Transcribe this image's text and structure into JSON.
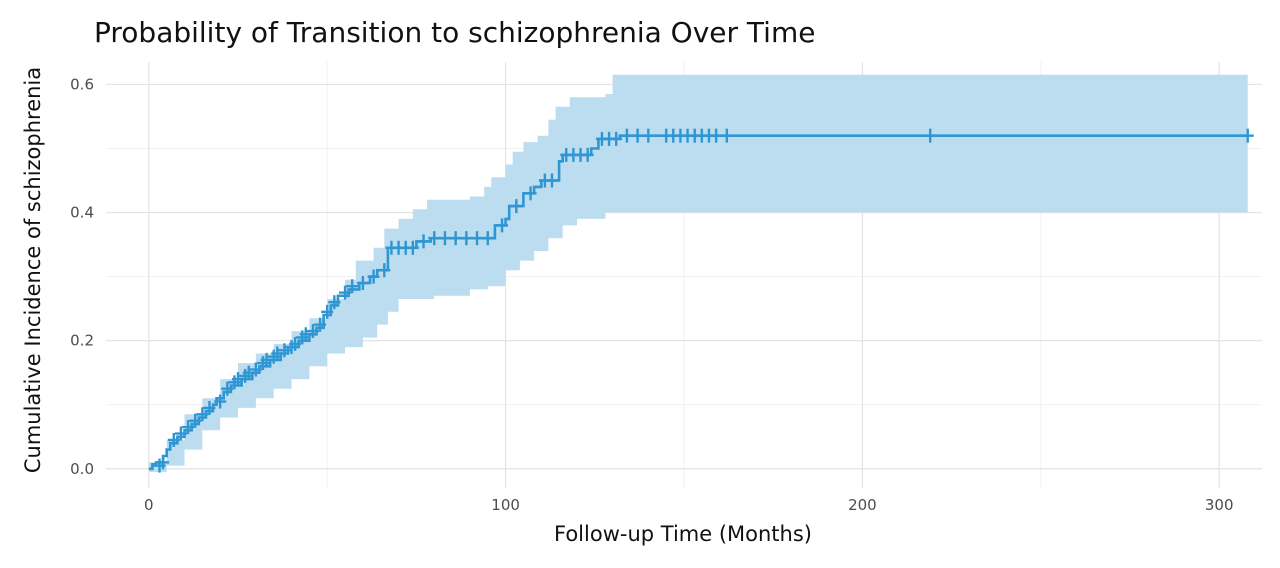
{
  "chart_data": {
    "type": "line",
    "title": "Probability of Transition to schizophrenia Over Time",
    "xlabel": "Follow-up Time (Months)",
    "ylabel": "Cumulative Incidence of schizophrenia",
    "xlim": [
      -12,
      312
    ],
    "ylim": [
      -0.03,
      0.635
    ],
    "x_ticks": [
      0,
      100,
      200,
      300
    ],
    "y_ticks": [
      0.0,
      0.2,
      0.4,
      0.6
    ],
    "x_tick_labels": [
      "0",
      "100",
      "200",
      "300"
    ],
    "y_tick_labels": [
      "0.0",
      "0.2",
      "0.4",
      "0.6"
    ],
    "grid": true,
    "legend": "none",
    "colors": {
      "line": "#2e96d2",
      "band": "#bcdcf0"
    },
    "series": [
      {
        "style": "step",
        "points": [
          [
            0,
            0.0
          ],
          [
            1,
            0.007
          ],
          [
            2,
            0.01
          ],
          [
            4,
            0.02
          ],
          [
            5,
            0.03
          ],
          [
            6,
            0.04
          ],
          [
            8,
            0.05
          ],
          [
            10,
            0.06
          ],
          [
            12,
            0.07
          ],
          [
            14,
            0.08
          ],
          [
            16,
            0.09
          ],
          [
            18,
            0.1
          ],
          [
            19,
            0.11
          ],
          [
            21,
            0.12
          ],
          [
            23,
            0.13
          ],
          [
            26,
            0.14
          ],
          [
            29,
            0.15
          ],
          [
            31,
            0.16
          ],
          [
            34,
            0.17
          ],
          [
            37,
            0.18
          ],
          [
            39,
            0.19
          ],
          [
            42,
            0.2
          ],
          [
            45,
            0.21
          ],
          [
            47,
            0.22
          ],
          [
            49,
            0.24
          ],
          [
            51,
            0.255
          ],
          [
            53,
            0.27
          ],
          [
            56,
            0.28
          ],
          [
            59,
            0.29
          ],
          [
            62,
            0.3
          ],
          [
            64,
            0.31
          ],
          [
            67,
            0.345
          ],
          [
            75,
            0.355
          ],
          [
            79,
            0.36
          ],
          [
            97,
            0.38
          ],
          [
            100,
            0.39
          ],
          [
            101,
            0.41
          ],
          [
            105,
            0.43
          ],
          [
            108,
            0.44
          ],
          [
            110,
            0.45
          ],
          [
            115,
            0.48
          ],
          [
            116,
            0.49
          ],
          [
            124,
            0.5
          ],
          [
            126,
            0.515
          ],
          [
            132,
            0.52
          ],
          [
            308,
            0.52
          ]
        ],
        "ci_upper": [
          [
            0,
            0.01
          ],
          [
            5,
            0.045
          ],
          [
            10,
            0.085
          ],
          [
            15,
            0.11
          ],
          [
            20,
            0.14
          ],
          [
            25,
            0.165
          ],
          [
            30,
            0.18
          ],
          [
            35,
            0.195
          ],
          [
            40,
            0.215
          ],
          [
            45,
            0.235
          ],
          [
            50,
            0.265
          ],
          [
            55,
            0.295
          ],
          [
            58,
            0.325
          ],
          [
            63,
            0.345
          ],
          [
            66,
            0.375
          ],
          [
            70,
            0.39
          ],
          [
            74,
            0.405
          ],
          [
            78,
            0.42
          ],
          [
            90,
            0.425
          ],
          [
            94,
            0.44
          ],
          [
            96,
            0.455
          ],
          [
            100,
            0.475
          ],
          [
            102,
            0.495
          ],
          [
            105,
            0.51
          ],
          [
            109,
            0.52
          ],
          [
            112,
            0.545
          ],
          [
            114,
            0.565
          ],
          [
            118,
            0.58
          ],
          [
            128,
            0.585
          ],
          [
            130,
            0.615
          ],
          [
            308,
            0.615
          ]
        ],
        "ci_lower": [
          [
            0,
            -0.005
          ],
          [
            5,
            0.005
          ],
          [
            10,
            0.03
          ],
          [
            15,
            0.06
          ],
          [
            20,
            0.08
          ],
          [
            25,
            0.095
          ],
          [
            30,
            0.11
          ],
          [
            35,
            0.125
          ],
          [
            40,
            0.14
          ],
          [
            45,
            0.16
          ],
          [
            50,
            0.18
          ],
          [
            55,
            0.19
          ],
          [
            60,
            0.205
          ],
          [
            64,
            0.225
          ],
          [
            67,
            0.245
          ],
          [
            70,
            0.265
          ],
          [
            80,
            0.27
          ],
          [
            90,
            0.28
          ],
          [
            95,
            0.285
          ],
          [
            100,
            0.31
          ],
          [
            104,
            0.325
          ],
          [
            108,
            0.34
          ],
          [
            112,
            0.36
          ],
          [
            116,
            0.38
          ],
          [
            120,
            0.39
          ],
          [
            128,
            0.4
          ],
          [
            308,
            0.4
          ]
        ],
        "censor_marks": [
          [
            3,
            0.005
          ],
          [
            4,
            0.01
          ],
          [
            7,
            0.045
          ],
          [
            9,
            0.055
          ],
          [
            11,
            0.065
          ],
          [
            13,
            0.075
          ],
          [
            15,
            0.085
          ],
          [
            17,
            0.095
          ],
          [
            20,
            0.105
          ],
          [
            22,
            0.125
          ],
          [
            24,
            0.135
          ],
          [
            25,
            0.14
          ],
          [
            27,
            0.145
          ],
          [
            28,
            0.15
          ],
          [
            30,
            0.155
          ],
          [
            32,
            0.165
          ],
          [
            33,
            0.17
          ],
          [
            35,
            0.175
          ],
          [
            36,
            0.18
          ],
          [
            38,
            0.185
          ],
          [
            40,
            0.19
          ],
          [
            41,
            0.195
          ],
          [
            43,
            0.205
          ],
          [
            44,
            0.21
          ],
          [
            46,
            0.215
          ],
          [
            48,
            0.225
          ],
          [
            50,
            0.245
          ],
          [
            52,
            0.26
          ],
          [
            55,
            0.275
          ],
          [
            57,
            0.285
          ],
          [
            60,
            0.29
          ],
          [
            63,
            0.3
          ],
          [
            66,
            0.31
          ],
          [
            68,
            0.345
          ],
          [
            70,
            0.345
          ],
          [
            72,
            0.345
          ],
          [
            74,
            0.345
          ],
          [
            77,
            0.355
          ],
          [
            80,
            0.36
          ],
          [
            83,
            0.36
          ],
          [
            86,
            0.36
          ],
          [
            89,
            0.36
          ],
          [
            92,
            0.36
          ],
          [
            95,
            0.36
          ],
          [
            99,
            0.38
          ],
          [
            103,
            0.41
          ],
          [
            107,
            0.43
          ],
          [
            111,
            0.45
          ],
          [
            113,
            0.45
          ],
          [
            117,
            0.49
          ],
          [
            119,
            0.49
          ],
          [
            121,
            0.49
          ],
          [
            123,
            0.49
          ],
          [
            127,
            0.515
          ],
          [
            129,
            0.515
          ],
          [
            131,
            0.515
          ],
          [
            134,
            0.52
          ],
          [
            137,
            0.52
          ],
          [
            140,
            0.52
          ],
          [
            145,
            0.52
          ],
          [
            147,
            0.52
          ],
          [
            149,
            0.52
          ],
          [
            151,
            0.52
          ],
          [
            153,
            0.52
          ],
          [
            155,
            0.52
          ],
          [
            157,
            0.52
          ],
          [
            159,
            0.52
          ],
          [
            162,
            0.52
          ],
          [
            219,
            0.52
          ],
          [
            308,
            0.52
          ]
        ]
      }
    ]
  }
}
